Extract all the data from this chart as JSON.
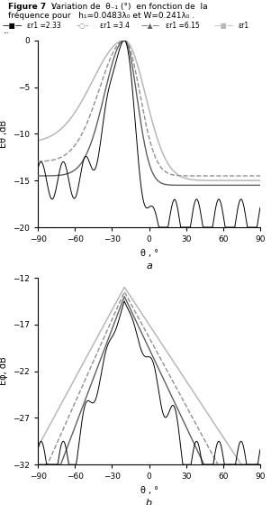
{
  "title_bold": "Figure 7  : ",
  "title_normal": "Variation de  θ₋₁ (°)  en fonction de  la",
  "title_line2": "fréquence pour   h₁=0.0483λ₀ et W=0.241λ₀ .",
  "subplot_a": {
    "ylabel": "Eθ ,dB",
    "xlabel": "θ , °",
    "label": "a",
    "ylim": [
      -20,
      0
    ],
    "yticks": [
      0,
      -5,
      -10,
      -15,
      -20
    ],
    "xlim": [
      -90,
      90
    ],
    "xticks": [
      -90,
      -60,
      -30,
      0,
      30,
      60,
      90
    ]
  },
  "subplot_b": {
    "ylabel": "Eφ, dB",
    "xlabel": "θ , °",
    "label": "b",
    "ylim": [
      -32,
      -12
    ],
    "yticks": [
      -12,
      -17,
      -22,
      -27,
      -32
    ],
    "xlim": [
      -90,
      90
    ],
    "xticks": [
      -90,
      -60,
      -30,
      0,
      30,
      60,
      90
    ]
  },
  "colors": {
    "light_gray": "#b8b8b8",
    "medium_gray": "#909090",
    "dark_gray": "#606060",
    "black": "#000000"
  },
  "legend": [
    {
      "label": "εr1 =2.33",
      "color": "#000000",
      "ls": "-",
      "marker": "s"
    },
    {
      "label": "εr1 =3.4",
      "color": "#909090",
      "ls": "--",
      "marker": "o"
    },
    {
      "label": "εr1 =6.15",
      "color": "#606060",
      "ls": "-",
      "marker": "^"
    },
    {
      "label": "εr1",
      "color": "#b8b8b8",
      "ls": "-",
      "marker": "s"
    }
  ]
}
